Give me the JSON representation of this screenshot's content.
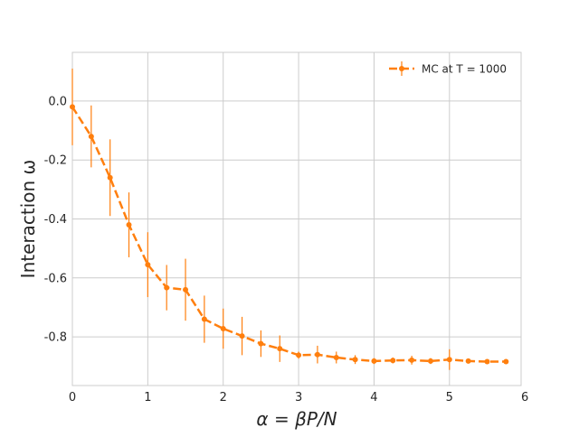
{
  "chart_data": {
    "type": "line",
    "xlabel": "α = βP/N",
    "ylabel": "Interaction ω",
    "xlim": [
      0,
      5.95
    ],
    "ylim": [
      -0.965,
      0.165
    ],
    "xticks": [
      "0",
      "1",
      "2",
      "3",
      "4",
      "5",
      "6"
    ],
    "xtick_values": [
      0,
      1,
      2,
      3,
      4,
      5,
      6
    ],
    "yticks": [
      "0.0",
      "-0.2",
      "-0.4",
      "-0.6",
      "-0.8"
    ],
    "ytick_values": [
      0.0,
      -0.2,
      -0.4,
      -0.6,
      -0.8
    ],
    "grid": true,
    "legend_position": "top-right",
    "series": [
      {
        "name": "MC at T = 1000",
        "color": "#ff7f0e",
        "line_style": "dashed",
        "marker": "circle",
        "x": [
          0,
          0.25,
          0.5,
          0.75,
          1.0,
          1.25,
          1.5,
          1.75,
          2.0,
          2.25,
          2.5,
          2.75,
          3.0,
          3.25,
          3.5,
          3.75,
          4.0,
          4.25,
          4.5,
          4.75,
          5.0,
          5.25,
          5.5,
          5.75
        ],
        "y": [
          -0.02,
          -0.12,
          -0.26,
          -0.42,
          -0.555,
          -0.633,
          -0.64,
          -0.74,
          -0.772,
          -0.797,
          -0.823,
          -0.84,
          -0.862,
          -0.86,
          -0.87,
          -0.877,
          -0.882,
          -0.88,
          -0.879,
          -0.882,
          -0.877,
          -0.882,
          -0.884,
          -0.884
        ],
        "yerr": [
          0.13,
          0.105,
          0.13,
          0.11,
          0.11,
          0.077,
          0.105,
          0.08,
          0.068,
          0.065,
          0.045,
          0.045,
          0.012,
          0.03,
          0.02,
          0.015,
          0.01,
          0.01,
          0.015,
          0.01,
          0.035,
          0.008,
          0.008,
          0.008
        ]
      }
    ]
  }
}
